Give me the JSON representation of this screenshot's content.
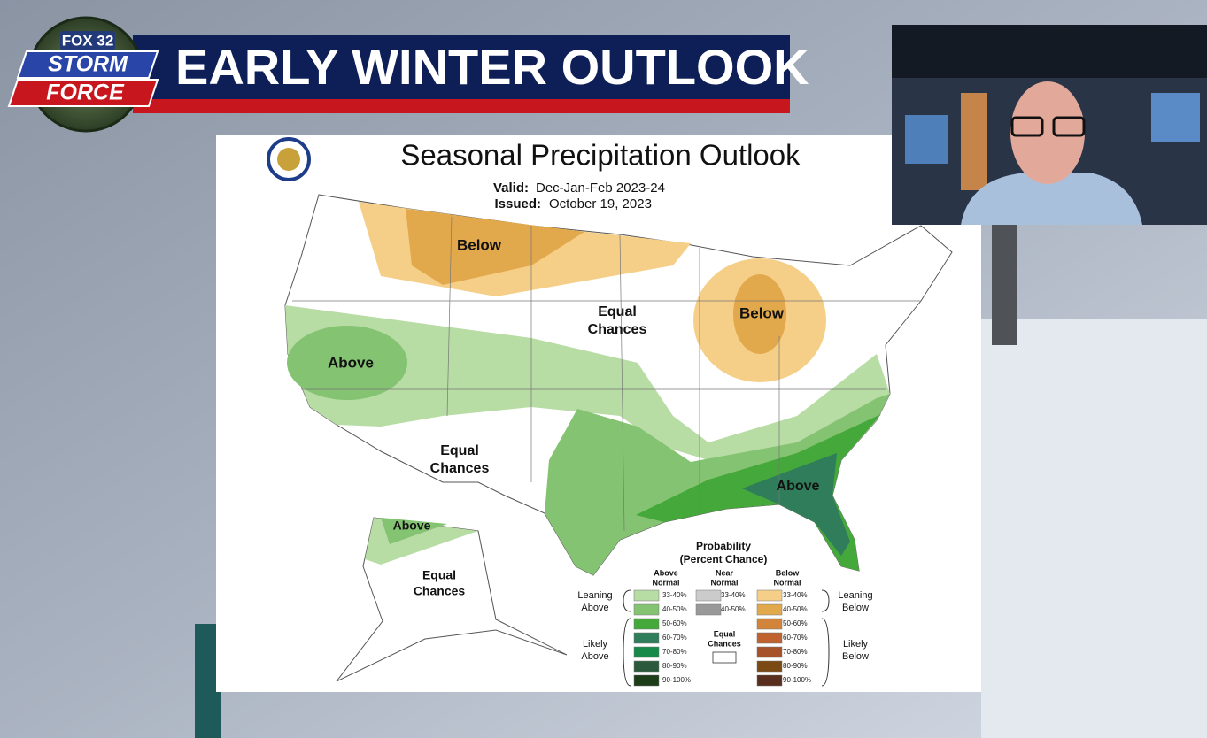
{
  "header": {
    "logo": {
      "network": "FOX 32",
      "line1": "STORM",
      "line2": "FORCE"
    },
    "title": "EARLY WINTER OUTLOOK"
  },
  "map": {
    "title": "Seasonal Precipitation Outlook",
    "valid_label": "Valid:",
    "valid_value": "Dec-Jan-Feb 2023-24",
    "issued_label": "Issued:",
    "issued_value": "October 19, 2023",
    "regions": [
      {
        "lines": [
          "Below"
        ]
      },
      {
        "lines": [
          "Equal",
          "Chances"
        ]
      },
      {
        "lines": [
          "Below"
        ]
      },
      {
        "lines": [
          "Above"
        ]
      },
      {
        "lines": [
          "Equal",
          "Chances"
        ]
      },
      {
        "lines": [
          "Above"
        ]
      },
      {
        "lines": [
          "Above"
        ]
      },
      {
        "lines": [
          "Equal",
          "Chances"
        ]
      }
    ]
  },
  "legend": {
    "title": [
      "Probability",
      "(Percent Chance)"
    ],
    "columns": [
      {
        "header": [
          "Above",
          "Normal"
        ],
        "swatches": [
          {
            "label": "33-40%",
            "color": "#b7dca4"
          },
          {
            "label": "40-50%",
            "color": "#84c372"
          },
          {
            "label": "50-60%",
            "color": "#45a83a"
          },
          {
            "label": "60-70%",
            "color": "#2f7d5a"
          },
          {
            "label": "70-80%",
            "color": "#178a49"
          },
          {
            "label": "80-90%",
            "color": "#2b5a3a"
          },
          {
            "label": "90-100%",
            "color": "#1c3d18"
          }
        ]
      },
      {
        "header": [
          "Near",
          "Normal"
        ],
        "swatches": [
          {
            "label": "33-40%",
            "color": "#cbcbcb"
          },
          {
            "label": "40-50%",
            "color": "#999999"
          }
        ]
      },
      {
        "header": [
          "Below",
          "Normal"
        ],
        "swatches": [
          {
            "label": "33-40%",
            "color": "#f5cf88"
          },
          {
            "label": "40-50%",
            "color": "#e2a84c"
          },
          {
            "label": "50-60%",
            "color": "#d3843b"
          },
          {
            "label": "60-70%",
            "color": "#bf622e"
          },
          {
            "label": "70-80%",
            "color": "#a6532b"
          },
          {
            "label": "80-90%",
            "color": "#7b4914"
          },
          {
            "label": "90-100%",
            "color": "#5a2e1e"
          }
        ]
      }
    ],
    "row_labels": [
      {
        "lines": [
          "Leaning",
          "Above"
        ]
      },
      {
        "lines": [
          "Likely",
          "Above"
        ]
      },
      {
        "lines": [
          "Leaning",
          "Below"
        ]
      },
      {
        "lines": [
          "Likely",
          "Below"
        ]
      }
    ],
    "equal_chances": [
      "Equal",
      "Chances"
    ]
  }
}
